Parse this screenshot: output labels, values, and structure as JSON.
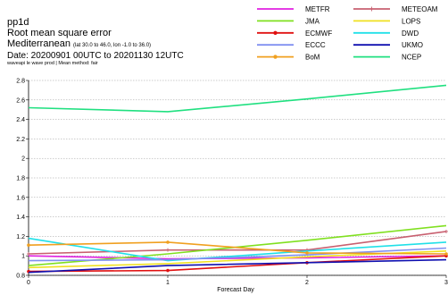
{
  "header": {
    "product": "pp1d",
    "metric": "Root mean square error",
    "region_name": "Mediterranean",
    "region_coords": "(lat  30.0 to 46.0, lon  -1.0 to 36.0)",
    "date": "Date: 20200901 00UTC to 20201130 12UTC",
    "subline": "waveapi le wave prod | Mean method: fair"
  },
  "chart_data": {
    "type": "line",
    "xlabel": "Forecast Day",
    "ylabel": "",
    "xlim": [
      0,
      3
    ],
    "ylim": [
      0.8,
      2.8
    ],
    "x_ticks": [
      "0",
      "1",
      "2",
      "3"
    ],
    "y_ticks": [
      "0.8",
      "1",
      "1.2",
      "1.4",
      "1.6",
      "1.8",
      "2",
      "2.2",
      "2.4",
      "2.6",
      "2.8"
    ],
    "grid": "horizontal",
    "legend_position": "top-right",
    "x": [
      0,
      1,
      2,
      3
    ],
    "series": [
      {
        "name": "METFR",
        "color": "#e020e0",
        "marker": "none",
        "values": [
          1.0,
          0.97,
          0.98,
          1.0
        ]
      },
      {
        "name": "METEOAM",
        "color": "#c86070",
        "marker": "cross",
        "values": [
          1.02,
          1.06,
          1.06,
          1.25
        ]
      },
      {
        "name": "JMA",
        "color": "#80e020",
        "marker": "none",
        "values": [
          0.9,
          1.02,
          1.16,
          1.31
        ]
      },
      {
        "name": "LOPS",
        "color": "#f0e020",
        "marker": "none",
        "values": [
          0.88,
          0.92,
          0.99,
          1.05
        ]
      },
      {
        "name": "ECMWF",
        "color": "#e01010",
        "marker": "circle",
        "values": [
          0.84,
          0.85,
          0.93,
          1.0
        ]
      },
      {
        "name": "DWD",
        "color": "#20e0e8",
        "marker": "none",
        "values": [
          1.18,
          0.95,
          1.05,
          1.14
        ]
      },
      {
        "name": "ECCC",
        "color": "#8090f0",
        "marker": "none",
        "values": [
          0.95,
          0.96,
          1.01,
          1.08
        ]
      },
      {
        "name": "UKMO",
        "color": "#1010b0",
        "marker": "none",
        "values": [
          0.83,
          0.9,
          0.93,
          0.96
        ]
      },
      {
        "name": "BoM",
        "color": "#f0a020",
        "marker": "circle",
        "values": [
          1.11,
          1.14,
          1.03,
          1.02
        ]
      },
      {
        "name": "NCEP",
        "color": "#20e080",
        "marker": "none",
        "values": [
          2.52,
          2.48,
          2.61,
          2.75
        ]
      }
    ]
  }
}
